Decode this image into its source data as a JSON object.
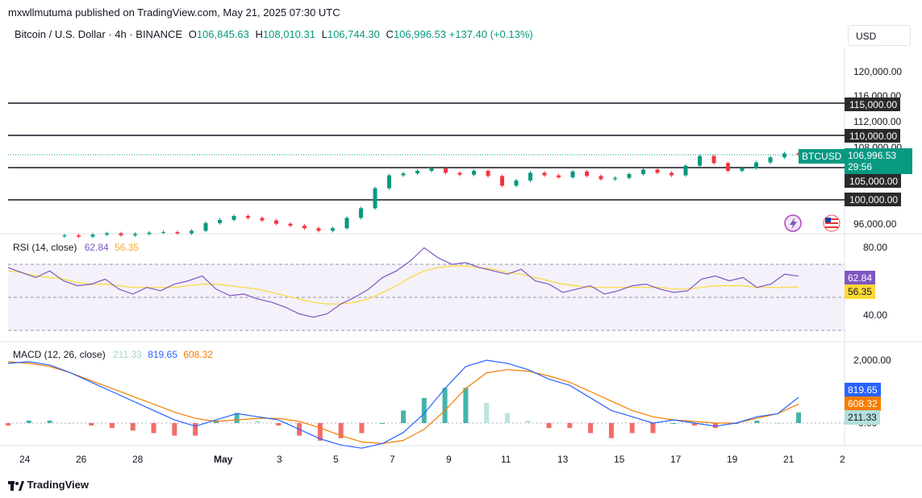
{
  "header": {
    "publisher_line": "mxwllmutuma published on TradingView.com, May 21, 2025 07:30 UTC",
    "symbol": "Bitcoin / U.S. Dollar · 4h · BINANCE",
    "o_label": "O",
    "o_value": "106,845.63",
    "h_label": "H",
    "h_value": "108,010.31",
    "l_label": "L",
    "l_value": "106,744.30",
    "c_label": "C",
    "c_value": "106,996.53",
    "change": "+137.40 (+0.13%)",
    "currency": "USD"
  },
  "price_axis": {
    "labels": [
      "120,000.00",
      "116,000.00",
      "112,000.00",
      "108,000.00",
      "96,000.00"
    ],
    "levels": [
      "115,000.00",
      "110,000.00",
      "105,000.00",
      "100,000.00"
    ],
    "ticker": "BTCUSD",
    "last_price": "106,996.53",
    "countdown": "29:56"
  },
  "rsi": {
    "title": "RSI (14, close)",
    "value": "62.84",
    "ma_value": "56.35",
    "axis": [
      "80.00",
      "40.00"
    ],
    "color_rsi": "#7e57c2",
    "color_ma": "#fdd835"
  },
  "macd": {
    "title": "MACD (12, 26, close)",
    "histogram": "211.33",
    "macd": "819.65",
    "signal": "608.32",
    "axis": [
      "2,000.00",
      "0.00"
    ],
    "color_hist": "#a5d6c8",
    "color_macd": "#2962ff",
    "color_signal": "#f57c00"
  },
  "time_axis": [
    "24",
    "26",
    "28",
    "May",
    "3",
    "5",
    "7",
    "9",
    "11",
    "13",
    "15",
    "17",
    "19",
    "21",
    "2"
  ],
  "footer": {
    "brand": "TradingView"
  },
  "chart_data": {
    "type": "candlestick",
    "symbol": "BTCUSD",
    "interval": "4h",
    "price_closes": [
      94500,
      94300,
      94600,
      94800,
      94500,
      94700,
      94900,
      95000,
      94800,
      95200,
      96400,
      96900,
      97500,
      97200,
      96800,
      96300,
      96000,
      95600,
      95200,
      95600,
      97200,
      98700,
      101800,
      103800,
      104100,
      104500,
      104900,
      104200,
      103900,
      104500,
      103700,
      102200,
      103000,
      104200,
      103800,
      103500,
      104400,
      103700,
      103200,
      103400,
      104000,
      104700,
      104200,
      103800,
      105300,
      106800,
      105700,
      104500,
      104900,
      105800,
      106600,
      107200,
      106997
    ],
    "horizontal_levels": [
      115000,
      110000,
      105000,
      100000
    ],
    "price_range": [
      94000,
      122000
    ],
    "rsi_values": [
      68,
      65,
      62,
      66,
      60,
      57,
      58,
      61,
      55,
      52,
      56,
      54,
      58,
      60,
      63,
      55,
      51,
      52,
      49,
      47,
      44,
      40,
      38,
      40,
      46,
      50,
      55,
      62,
      66,
      72,
      80,
      74,
      70,
      71,
      68,
      66,
      64,
      67,
      60,
      58,
      53,
      55,
      57,
      52,
      54,
      57,
      58,
      55,
      53,
      54,
      61,
      63,
      60,
      62,
      56,
      58,
      64,
      62.84
    ],
    "rsi_ma_values": [
      66,
      65,
      63,
      62,
      61,
      59,
      58,
      58,
      57,
      56,
      56,
      56,
      56,
      57,
      58,
      58,
      57,
      56,
      55,
      53,
      51,
      49,
      47,
      46,
      46,
      47,
      49,
      53,
      57,
      62,
      66,
      68,
      69,
      69,
      68,
      67,
      65,
      64,
      62,
      60,
      58,
      57,
      56,
      56,
      56,
      56,
      56,
      56,
      55,
      55,
      56,
      57,
      57,
      57,
      56,
      56,
      56,
      56.35
    ],
    "rsi_range": [
      20,
      90
    ],
    "macd_values": [
      1900,
      1950,
      1850,
      1600,
      1300,
      1000,
      700,
      400,
      100,
      -100,
      100,
      300,
      200,
      100,
      -200,
      -500,
      -700,
      -800,
      -650,
      -300,
      300,
      1100,
      1800,
      2000,
      1900,
      1700,
      1400,
      1200,
      800,
      400,
      200,
      0,
      100,
      0,
      -100,
      0,
      200,
      300,
      819.65
    ],
    "signal_values": [
      1950,
      1900,
      1800,
      1600,
      1350,
      1100,
      850,
      600,
      350,
      150,
      50,
      100,
      150,
      150,
      50,
      -150,
      -400,
      -600,
      -650,
      -550,
      -200,
      400,
      1100,
      1600,
      1700,
      1650,
      1500,
      1300,
      1000,
      700,
      400,
      200,
      100,
      50,
      0,
      0,
      150,
      300,
      608.32
    ],
    "histogram_last": 211.33,
    "macd_range": [
      -1200,
      2600
    ]
  }
}
